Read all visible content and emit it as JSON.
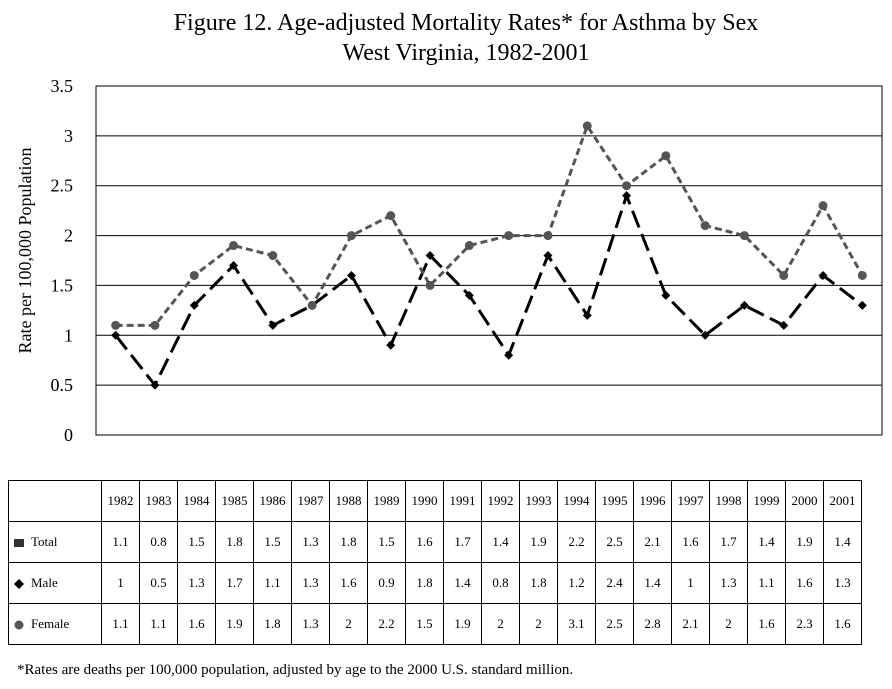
{
  "title_line1": "Figure 12.  Age-adjusted Mortality Rates* for Asthma by Sex",
  "title_line2": "West Virginia, 1982-2001",
  "footnote": "*Rates are deaths per 100,000 population, adjusted by age to the 2000 U.S. standard million.",
  "chart_data": {
    "type": "line",
    "ylabel": "Rate per 100,000 Population",
    "ylim": [
      0,
      3.5
    ],
    "yticks": [
      "0",
      "0.5",
      "1",
      "1.5",
      "2",
      "2.5",
      "3",
      "3.5"
    ],
    "grid": true,
    "categories": [
      "1982",
      "1983",
      "1984",
      "1985",
      "1986",
      "1987",
      "1988",
      "1989",
      "1990",
      "1991",
      "1992",
      "1993",
      "1994",
      "1995",
      "1996",
      "1997",
      "1998",
      "1999",
      "2000",
      "2001"
    ],
    "series": [
      {
        "name": "Male",
        "color": "#000000",
        "marker": "diamond",
        "values": [
          1,
          0.5,
          1.3,
          1.7,
          1.1,
          1.3,
          1.6,
          0.9,
          1.8,
          1.4,
          0.8,
          1.8,
          1.2,
          2.4,
          1.4,
          1,
          1.3,
          1.1,
          1.6,
          1.3
        ]
      },
      {
        "name": "Female",
        "color": "#555555",
        "marker": "circle",
        "values": [
          1.1,
          1.1,
          1.6,
          1.9,
          1.8,
          1.3,
          2,
          2.2,
          1.5,
          1.9,
          2,
          2,
          3.1,
          2.5,
          2.8,
          2.1,
          2,
          1.6,
          2.3,
          1.6
        ]
      }
    ]
  },
  "table": {
    "years": [
      "1982",
      "1983",
      "1984",
      "1985",
      "1986",
      "1987",
      "1988",
      "1989",
      "1990",
      "1991",
      "1992",
      "1993",
      "1994",
      "1995",
      "1996",
      "1997",
      "1998",
      "1999",
      "2000",
      "2001"
    ],
    "rows": [
      {
        "label": "Total",
        "marker": "square",
        "values": [
          "1.1",
          "0.8",
          "1.5",
          "1.8",
          "1.5",
          "1.3",
          "1.8",
          "1.5",
          "1.6",
          "1.7",
          "1.4",
          "1.9",
          "2.2",
          "2.5",
          "2.1",
          "1.6",
          "1.7",
          "1.4",
          "1.9",
          "1.4"
        ]
      },
      {
        "label": "Male",
        "marker": "diamond",
        "values": [
          "1",
          "0.5",
          "1.3",
          "1.7",
          "1.1",
          "1.3",
          "1.6",
          "0.9",
          "1.8",
          "1.4",
          "0.8",
          "1.8",
          "1.2",
          "2.4",
          "1.4",
          "1",
          "1.3",
          "1.1",
          "1.6",
          "1.3"
        ]
      },
      {
        "label": "Female",
        "marker": "circle",
        "values": [
          "1.1",
          "1.1",
          "1.6",
          "1.9",
          "1.8",
          "1.3",
          "2",
          "2.2",
          "1.5",
          "1.9",
          "2",
          "2",
          "3.1",
          "2.5",
          "2.8",
          "2.1",
          "2",
          "1.6",
          "2.3",
          "1.6"
        ]
      }
    ]
  }
}
